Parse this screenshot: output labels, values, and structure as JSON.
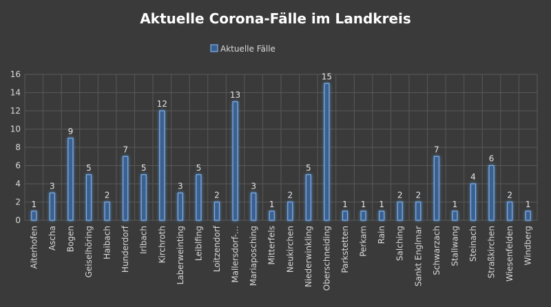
{
  "chart_data": {
    "type": "bar",
    "title": "Aktuelle Corona-Fälle im Landkreis",
    "legend": "Aktuelle Fälle",
    "legend_position": "top",
    "ylim": [
      0,
      16
    ],
    "y_ticks": [
      "0",
      "2",
      "4",
      "6",
      "8",
      "10",
      "12",
      "14",
      "16"
    ],
    "grid": true,
    "categories": [
      "Aiterhofen",
      "Ascha",
      "Bogen",
      "Geiselhöring",
      "Haibach",
      "Hunderdorf",
      "Irlbach",
      "Kirchroth",
      "Laberweinting",
      "Leiblfing",
      "Loitzendorf",
      "Mallersdorf-…",
      "Mariaposching",
      "Mitterfels",
      "Neukirchen",
      "Niederwinkling",
      "Oberschneiding",
      "Parkstetten",
      "Perkam",
      "Rain",
      "Salching",
      "Sankt Englmar",
      "Schwarzach",
      "Stallwang",
      "Steinach",
      "Straßkirchen",
      "Wiesenfelden",
      "Windberg"
    ],
    "values": [
      1,
      3,
      9,
      5,
      2,
      7,
      5,
      12,
      3,
      5,
      2,
      13,
      3,
      1,
      2,
      5,
      15,
      1,
      1,
      1,
      2,
      2,
      7,
      1,
      4,
      6,
      2,
      1
    ],
    "colors": {
      "background": "#3a3a3a",
      "bar_fill": "#3b5f8f",
      "bar_edge": "#7fb0ea",
      "grid": "#595959",
      "text": "#d9d9d9"
    }
  }
}
